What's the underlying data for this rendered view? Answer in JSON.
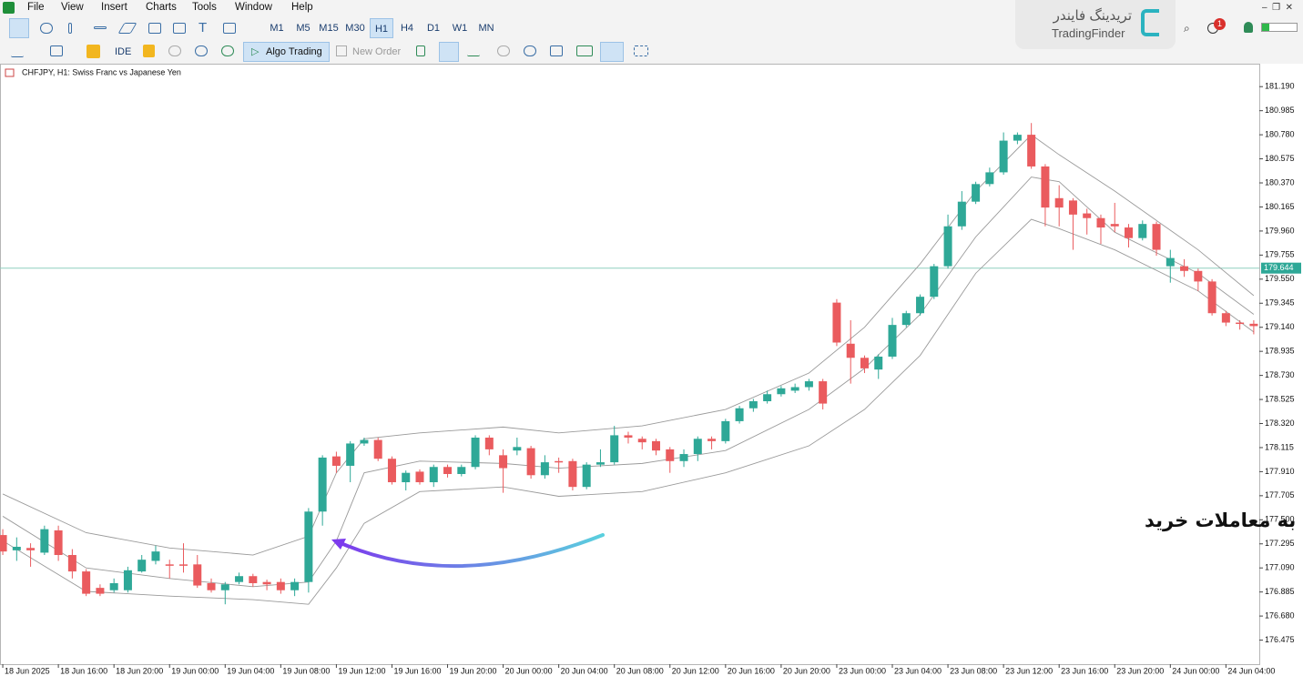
{
  "menu": [
    "File",
    "View",
    "Insert",
    "Charts",
    "Tools",
    "Window",
    "Help"
  ],
  "toolbar": {
    "timeframes": [
      "M1",
      "M5",
      "M15",
      "M30",
      "H1",
      "H4",
      "D1",
      "W1",
      "MN"
    ],
    "active_timeframe": "H1",
    "ide": "IDE",
    "algo_trading": "Algo Trading",
    "new_order": "New Order"
  },
  "watermark": {
    "persian": "تریدینگ فایندر",
    "latin": "TradingFinder"
  },
  "notification_count": 1,
  "chart_data": {
    "type": "candlestick",
    "title": "CHFJPY, H1:  Swiss Franc vs Japanese Yen",
    "annotation": "ناحیه اشباع فروش و محدوده مناسب برای ورود به معاملات خرید",
    "categories": [
      "18 Jun 2025",
      null,
      null,
      null,
      "18 Jun 16:00",
      null,
      null,
      null,
      "18 Jun 20:00",
      null,
      null,
      null,
      "19 Jun 00:00",
      null,
      null,
      null,
      "19 Jun 04:00",
      null,
      null,
      null,
      "19 Jun 08:00",
      null,
      null,
      null,
      "19 Jun 12:00",
      null,
      null,
      null,
      "19 Jun 16:00",
      null,
      null,
      null,
      "19 Jun 20:00",
      null,
      null,
      null,
      "20 Jun 00:00",
      null,
      null,
      null,
      "20 Jun 04:00",
      null,
      null,
      null,
      "20 Jun 08:00",
      null,
      null,
      null,
      "20 Jun 12:00",
      null,
      null,
      null,
      "20 Jun 16:00",
      null,
      null,
      null,
      "20 Jun 20:00",
      null,
      null,
      null,
      "23 Jun 00:00",
      null,
      null,
      null,
      "23 Jun 04:00",
      null,
      null,
      null,
      "23 Jun 08:00",
      null,
      null,
      null,
      "23 Jun 12:00",
      null,
      null,
      null,
      "23 Jun 16:00",
      null,
      null,
      null,
      "23 Jun 20:00",
      null,
      null,
      null,
      "24 Jun 00:00",
      null,
      null,
      null,
      "24 Jun 04:00",
      null,
      null
    ],
    "open": [
      177.37,
      177.24,
      177.26,
      177.22,
      177.41,
      177.2,
      177.06,
      176.92,
      176.9,
      176.9,
      177.06,
      177.15,
      177.12,
      177.12,
      177.12,
      176.96,
      176.9,
      176.97,
      177.02,
      176.97,
      176.97,
      176.9,
      176.97,
      177.57,
      178.04,
      177.96,
      178.15,
      178.18,
      178.02,
      177.82,
      177.91,
      177.82,
      177.95,
      177.89,
      177.95,
      178.2,
      178.05,
      178.09,
      178.11,
      177.88,
      178.0,
      178.0,
      177.78,
      177.97,
      177.99,
      178.22,
      178.19,
      178.17,
      178.1,
      178.0,
      178.06,
      178.19,
      178.17,
      178.34,
      178.45,
      178.51,
      178.57,
      178.6,
      178.63,
      178.68,
      179.35,
      179.0,
      178.88,
      178.78,
      178.89,
      179.16,
      179.26,
      179.4,
      179.66,
      180.0,
      180.21,
      180.36,
      180.46,
      180.73,
      180.78,
      180.51,
      180.24,
      180.22,
      180.11,
      180.07,
      180.02,
      179.99,
      179.9,
      180.02,
      179.66,
      179.66,
      179.62,
      179.53,
      179.26,
      179.18,
      179.17
    ],
    "high": [
      177.42,
      177.35,
      177.3,
      177.45,
      177.45,
      177.25,
      177.08,
      176.95,
      177.0,
      177.1,
      177.2,
      177.28,
      177.16,
      177.3,
      177.2,
      177.0,
      176.97,
      177.05,
      177.04,
      176.99,
      177.0,
      177.0,
      177.6,
      178.05,
      178.08,
      178.17,
      178.2,
      178.2,
      178.04,
      177.92,
      177.93,
      177.97,
      177.97,
      177.97,
      178.22,
      178.22,
      178.1,
      178.2,
      178.13,
      178.05,
      178.03,
      178.02,
      177.99,
      178.1,
      178.3,
      178.25,
      178.21,
      178.19,
      178.12,
      178.1,
      178.21,
      178.21,
      178.36,
      178.47,
      178.53,
      178.6,
      178.64,
      178.66,
      178.7,
      178.7,
      179.38,
      179.2,
      178.9,
      178.91,
      179.22,
      179.28,
      179.42,
      179.68,
      180.1,
      180.3,
      180.38,
      180.5,
      180.8,
      180.8,
      180.88,
      180.53,
      180.35,
      180.24,
      180.15,
      180.1,
      180.2,
      180.02,
      180.05,
      180.04,
      179.8,
      179.72,
      179.64,
      179.55,
      179.28,
      179.2,
      179.2
    ],
    "low": [
      177.2,
      177.15,
      177.1,
      177.2,
      177.15,
      177.0,
      176.85,
      176.85,
      176.88,
      176.88,
      177.05,
      177.12,
      177.0,
      177.05,
      176.92,
      176.88,
      176.78,
      176.95,
      176.93,
      176.9,
      176.87,
      176.85,
      176.88,
      177.45,
      177.9,
      177.82,
      178.13,
      178.0,
      177.8,
      177.75,
      177.8,
      177.78,
      177.86,
      177.87,
      177.93,
      178.05,
      177.73,
      178.05,
      177.85,
      177.85,
      177.9,
      177.75,
      177.76,
      177.95,
      177.97,
      178.15,
      178.1,
      178.05,
      177.9,
      177.95,
      178.0,
      178.1,
      178.15,
      178.32,
      178.42,
      178.49,
      178.55,
      178.58,
      178.6,
      178.44,
      178.98,
      178.66,
      178.75,
      178.7,
      178.87,
      179.14,
      179.24,
      179.38,
      179.64,
      179.97,
      180.19,
      180.34,
      180.44,
      180.7,
      180.49,
      180.0,
      180.0,
      179.8,
      179.93,
      179.85,
      179.95,
      179.82,
      179.88,
      179.75,
      179.52,
      179.57,
      179.45,
      179.24,
      179.15,
      179.12,
      179.08
    ],
    "close": [
      177.23,
      177.27,
      177.24,
      177.42,
      177.2,
      177.06,
      176.87,
      176.87,
      176.96,
      177.07,
      177.16,
      177.23,
      177.11,
      177.11,
      176.94,
      176.9,
      176.95,
      177.02,
      176.96,
      176.95,
      176.9,
      176.97,
      177.57,
      178.03,
      177.96,
      178.15,
      178.18,
      178.02,
      177.82,
      177.9,
      177.82,
      177.95,
      177.89,
      177.95,
      178.2,
      178.1,
      177.94,
      178.12,
      177.88,
      177.99,
      177.99,
      177.78,
      177.97,
      177.99,
      178.22,
      178.2,
      178.16,
      178.09,
      178.0,
      178.06,
      178.19,
      178.17,
      178.34,
      178.45,
      178.51,
      178.57,
      178.62,
      178.63,
      178.68,
      178.49,
      179.01,
      178.88,
      178.79,
      178.89,
      179.16,
      179.26,
      179.4,
      179.66,
      180.0,
      180.21,
      180.36,
      180.46,
      180.73,
      180.78,
      180.51,
      180.16,
      180.16,
      180.1,
      180.07,
      179.99,
      180.0,
      179.9,
      180.02,
      179.8,
      179.73,
      179.62,
      179.53,
      179.26,
      179.18,
      179.17,
      179.15
    ],
    "up_color": "#2ea897",
    "down_color": "#ea5b5e",
    "bands": [
      {
        "color": "#9a9a9a",
        "x": [
          0,
          6,
          12,
          18,
          22,
          24,
          26,
          30,
          36,
          40,
          46,
          52,
          58,
          62,
          66,
          70,
          74,
          76,
          80,
          86,
          90
        ],
        "values": [
          177.72,
          177.39,
          177.26,
          177.2,
          177.36,
          177.9,
          178.19,
          178.24,
          178.29,
          178.24,
          178.3,
          178.44,
          178.75,
          179.14,
          179.68,
          180.3,
          180.78,
          180.61,
          180.3,
          179.8,
          179.41
        ]
      },
      {
        "color": "#9a9a9a",
        "x": [
          0,
          6,
          12,
          18,
          22,
          24,
          26,
          30,
          36,
          40,
          46,
          52,
          58,
          62,
          66,
          70,
          74,
          76,
          80,
          86,
          90
        ],
        "values": [
          177.53,
          177.09,
          177.0,
          176.93,
          176.97,
          177.32,
          177.9,
          178.0,
          177.98,
          177.94,
          177.98,
          178.09,
          178.44,
          178.79,
          179.25,
          179.91,
          180.42,
          180.38,
          179.95,
          179.6,
          179.25
        ]
      },
      {
        "color": "#9a9a9a",
        "x": [
          0,
          6,
          12,
          18,
          22,
          24,
          26,
          30,
          36,
          40,
          46,
          52,
          58,
          62,
          66,
          70,
          74,
          76,
          80,
          86,
          90
        ],
        "values": [
          177.32,
          176.89,
          176.85,
          176.82,
          176.78,
          177.09,
          177.47,
          177.74,
          177.78,
          177.7,
          177.74,
          177.9,
          178.13,
          178.44,
          178.9,
          179.6,
          180.06,
          179.98,
          179.8,
          179.45,
          179.1
        ]
      }
    ],
    "price_line": {
      "value": 179.644,
      "color": "#8fcfbf",
      "label_color": "#2ea897"
    },
    "xlim": [
      -0.2,
      90.4
    ],
    "ylim": [
      176.27,
      181.37
    ],
    "yticks": [
      {
        "value": 181.19,
        "label": "181.190"
      },
      180.985,
      {
        "value": 180.78,
        "label": "180.780"
      },
      180.575,
      {
        "value": 180.37,
        "label": "180.370"
      },
      180.165,
      {
        "value": 179.96,
        "label": "179.960"
      },
      179.755,
      {
        "value": 179.55,
        "label": "179.550"
      },
      179.345,
      {
        "value": 179.14,
        "label": "179.140"
      },
      178.935,
      {
        "value": 178.73,
        "label": "178.730"
      },
      178.525,
      {
        "value": 178.32,
        "label": "178.320"
      },
      178.115,
      {
        "value": 177.91,
        "label": "177.910"
      },
      177.705,
      {
        "value": 177.5,
        "label": "177.500"
      },
      177.295,
      {
        "value": 177.09,
        "label": "177.090"
      },
      176.885,
      {
        "value": 176.68,
        "label": "176.680"
      },
      176.475
    ]
  }
}
